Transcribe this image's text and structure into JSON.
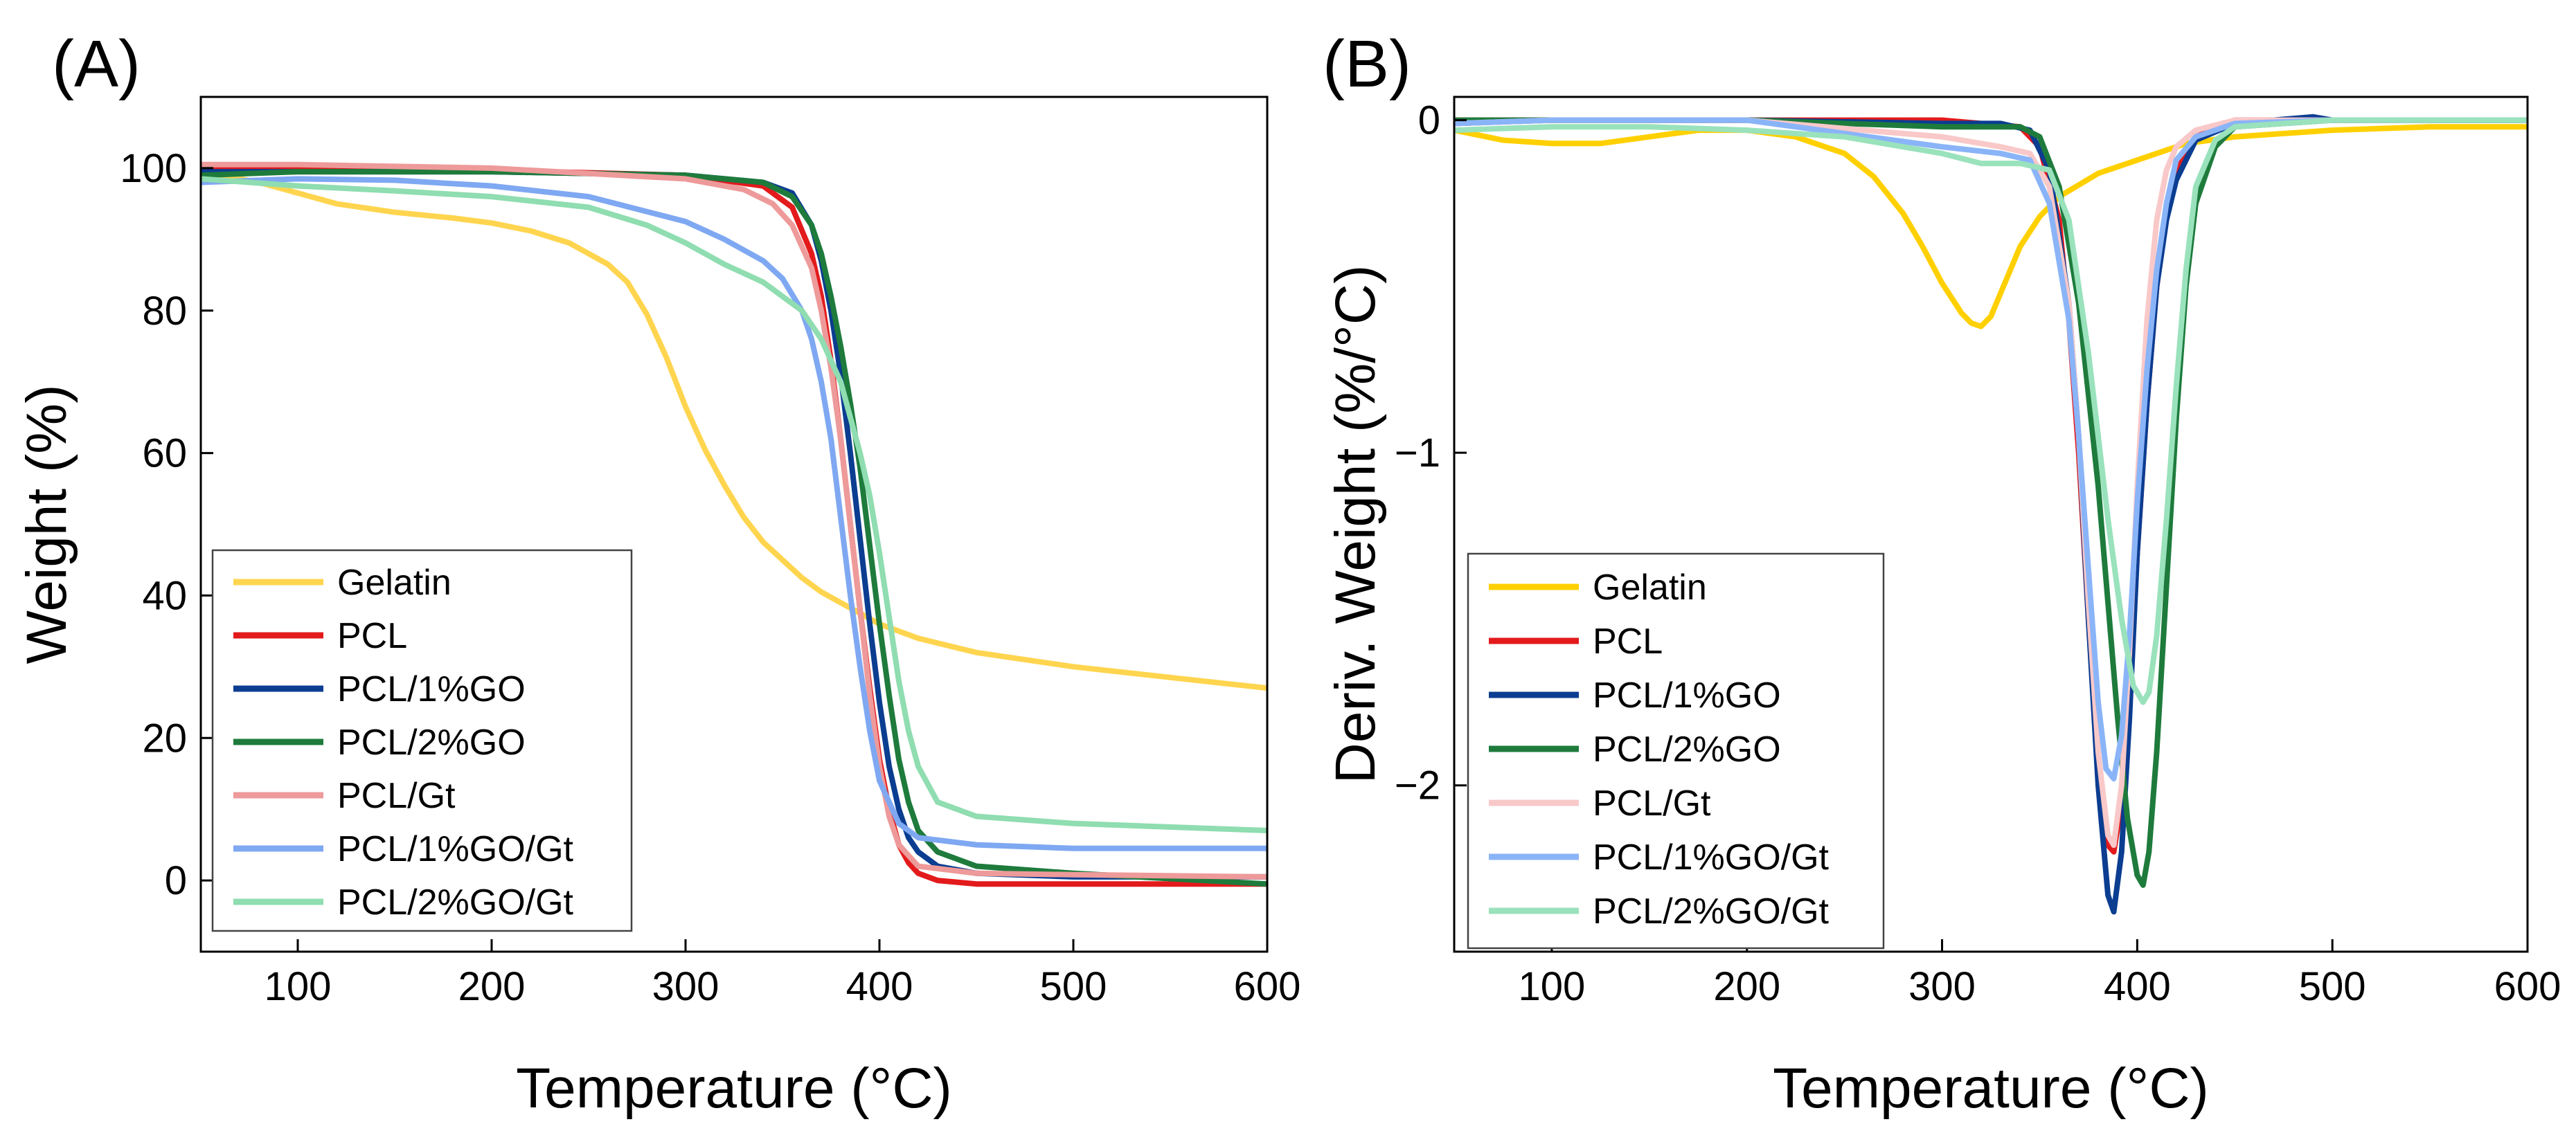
{
  "chart_data": [
    {
      "type": "line",
      "panel_label": "(A)",
      "title": "",
      "xlabel": "Temperature (°C)",
      "ylabel": "Weight (%)",
      "xlim": [
        50,
        600
      ],
      "ylim": [
        -10,
        110
      ],
      "xticks": [
        100,
        200,
        300,
        400,
        500,
        600
      ],
      "yticks": [
        0,
        20,
        40,
        60,
        80,
        100
      ],
      "grid": false,
      "legend_position": "bottom-left",
      "series": [
        {
          "name": "Gelatin",
          "color": "#FFD54F",
          "x": [
            50,
            60,
            80,
            100,
            120,
            150,
            180,
            200,
            220,
            240,
            260,
            270,
            280,
            290,
            300,
            310,
            320,
            330,
            340,
            350,
            360,
            370,
            380,
            390,
            400,
            420,
            450,
            500,
            550,
            600
          ],
          "y": [
            100,
            99,
            98,
            96.5,
            95,
            93.8,
            93,
            92.3,
            91.2,
            89.5,
            86.5,
            84,
            79.5,
            73.5,
            66.5,
            60.5,
            55.5,
            51,
            47.5,
            45,
            42.5,
            40.5,
            39,
            37.5,
            36,
            34,
            32,
            30,
            28.5,
            27
          ]
        },
        {
          "name": "PCL",
          "color": "#E31A1C",
          "x": [
            50,
            100,
            200,
            300,
            340,
            355,
            365,
            370,
            375,
            380,
            385,
            390,
            395,
            400,
            405,
            410,
            415,
            420,
            430,
            450,
            500,
            600
          ],
          "y": [
            100,
            100,
            99.7,
            99,
            97.5,
            94.5,
            88,
            82,
            73,
            62,
            50,
            38,
            27,
            17,
            10,
            5,
            2.5,
            1,
            0,
            -0.5,
            -0.5,
            -0.5
          ]
        },
        {
          "name": "PCL/1%GO",
          "color": "#0B3D91",
          "x": [
            50,
            100,
            200,
            300,
            340,
            355,
            365,
            370,
            375,
            380,
            385,
            390,
            395,
            400,
            405,
            410,
            415,
            420,
            430,
            450,
            500,
            600
          ],
          "y": [
            99.5,
            99.5,
            99.5,
            99,
            98,
            96.5,
            92,
            87,
            80,
            71,
            60,
            48,
            36,
            25,
            16,
            10,
            6,
            4,
            2,
            1,
            0.5,
            0.5
          ]
        },
        {
          "name": "PCL/2%GO",
          "color": "#1E7B3C",
          "x": [
            50,
            100,
            200,
            300,
            340,
            355,
            365,
            370,
            375,
            380,
            385,
            390,
            395,
            400,
            405,
            410,
            415,
            420,
            430,
            450,
            500,
            600
          ],
          "y": [
            99,
            99.5,
            99.5,
            99,
            98,
            96,
            92,
            88,
            82,
            75,
            67,
            58,
            47,
            36,
            26,
            17,
            11,
            7,
            4,
            2,
            1,
            -0.5
          ]
        },
        {
          "name": "PCL/Gt",
          "color": "#EE9A9A",
          "x": [
            50,
            100,
            200,
            300,
            330,
            345,
            355,
            365,
            370,
            375,
            380,
            385,
            390,
            395,
            400,
            405,
            410,
            420,
            450,
            500,
            600
          ],
          "y": [
            100.5,
            100.5,
            100,
            98.5,
            97,
            95,
            92,
            86,
            80,
            72,
            62,
            50,
            38,
            26,
            16,
            9,
            5,
            2,
            1,
            0.8,
            0.5
          ]
        },
        {
          "name": "PCL/1%GO/Gt",
          "color": "#7FA8F2",
          "x": [
            50,
            100,
            150,
            200,
            250,
            300,
            320,
            340,
            350,
            360,
            365,
            370,
            375,
            380,
            385,
            390,
            395,
            400,
            410,
            420,
            450,
            500,
            600
          ],
          "y": [
            98,
            98.5,
            98.3,
            97.5,
            96,
            92.5,
            90,
            87,
            84.5,
            80,
            76,
            70,
            62,
            51,
            40,
            30,
            21,
            14,
            8,
            6,
            5,
            4.5,
            4.5
          ]
        },
        {
          "name": "PCL/2%GO/Gt",
          "color": "#8FDDB0",
          "x": [
            50,
            100,
            150,
            200,
            250,
            280,
            300,
            320,
            340,
            360,
            370,
            380,
            390,
            395,
            400,
            405,
            410,
            415,
            420,
            430,
            450,
            500,
            600
          ],
          "y": [
            98.5,
            97.5,
            96.8,
            96,
            94.5,
            92,
            89.5,
            86.5,
            84,
            80,
            76,
            70,
            60,
            54,
            46,
            37,
            28,
            21,
            16,
            11,
            9,
            8,
            7
          ]
        }
      ],
      "legend": [
        "Gelatin",
        "PCL",
        "PCL/1%GO",
        "PCL/2%GO",
        "PCL/Gt",
        "PCL/1%GO/Gt",
        "PCL/2%GO/Gt"
      ]
    },
    {
      "type": "line",
      "panel_label": "(B)",
      "title": "",
      "xlabel": "Temperature (°C)",
      "ylabel": "Deriv. Weight (%/°C)",
      "xlim": [
        50,
        600
      ],
      "ylim": [
        -2.5,
        0.07
      ],
      "xticks": [
        100,
        200,
        300,
        400,
        500,
        600
      ],
      "yticks": [
        0,
        -1,
        -2
      ],
      "grid": false,
      "legend_position": "bottom-left",
      "series": [
        {
          "name": "Gelatin",
          "color": "#FFD000",
          "x": [
            50,
            75,
            100,
            125,
            150,
            175,
            200,
            225,
            250,
            265,
            280,
            290,
            300,
            310,
            315,
            320,
            325,
            330,
            340,
            350,
            360,
            380,
            400,
            425,
            450,
            500,
            550,
            600
          ],
          "y": [
            -0.03,
            -0.06,
            -0.07,
            -0.07,
            -0.05,
            -0.03,
            -0.03,
            -0.05,
            -0.1,
            -0.17,
            -0.28,
            -0.38,
            -0.49,
            -0.58,
            -0.61,
            -0.62,
            -0.59,
            -0.52,
            -0.38,
            -0.29,
            -0.23,
            -0.16,
            -0.12,
            -0.07,
            -0.05,
            -0.03,
            -0.02,
            -0.02
          ]
        },
        {
          "name": "PCL",
          "color": "#E31A1C",
          "x": [
            50,
            100,
            200,
            300,
            340,
            350,
            360,
            365,
            370,
            375,
            380,
            385,
            388,
            392,
            396,
            400,
            405,
            410,
            415,
            420,
            430,
            450,
            500,
            600
          ],
          "y": [
            0,
            0,
            0,
            0,
            -0.02,
            -0.08,
            -0.3,
            -0.6,
            -1.0,
            -1.5,
            -1.95,
            -2.18,
            -2.2,
            -2.05,
            -1.7,
            -1.3,
            -0.85,
            -0.5,
            -0.28,
            -0.15,
            -0.05,
            0,
            0,
            0
          ]
        },
        {
          "name": "PCL/1%GO",
          "color": "#0B3D91",
          "x": [
            50,
            100,
            200,
            300,
            330,
            345,
            355,
            365,
            370,
            375,
            380,
            385,
            388,
            392,
            396,
            400,
            405,
            410,
            415,
            420,
            430,
            450,
            490,
            500,
            600
          ],
          "y": [
            -0.01,
            0,
            0,
            -0.01,
            -0.01,
            -0.03,
            -0.15,
            -0.55,
            -0.95,
            -1.5,
            -2.0,
            -2.33,
            -2.38,
            -2.2,
            -1.8,
            -1.3,
            -0.85,
            -0.5,
            -0.3,
            -0.18,
            -0.06,
            -0.01,
            0.01,
            0,
            0
          ]
        },
        {
          "name": "PCL/2%GO",
          "color": "#1E7B3C",
          "x": [
            50,
            100,
            200,
            300,
            340,
            350,
            360,
            370,
            380,
            385,
            390,
            395,
            400,
            403,
            406,
            410,
            415,
            420,
            425,
            430,
            440,
            450,
            500,
            600
          ],
          "y": [
            0,
            0,
            0,
            -0.02,
            -0.02,
            -0.05,
            -0.2,
            -0.55,
            -1.1,
            -1.45,
            -1.8,
            -2.1,
            -2.27,
            -2.3,
            -2.2,
            -1.9,
            -1.4,
            -0.9,
            -0.5,
            -0.25,
            -0.08,
            -0.02,
            0,
            0
          ]
        },
        {
          "name": "PCL/Gt",
          "color": "#F9C8C8",
          "x": [
            50,
            100,
            200,
            300,
            330,
            345,
            355,
            365,
            370,
            375,
            380,
            385,
            388,
            392,
            396,
            400,
            405,
            410,
            415,
            420,
            430,
            450,
            500,
            600
          ],
          "y": [
            -0.01,
            0,
            0,
            -0.05,
            -0.08,
            -0.1,
            -0.2,
            -0.55,
            -0.95,
            -1.45,
            -1.9,
            -2.15,
            -2.18,
            -2.0,
            -1.6,
            -1.1,
            -0.6,
            -0.3,
            -0.15,
            -0.08,
            -0.03,
            0,
            0,
            0
          ]
        },
        {
          "name": "PCL/1%GO/Gt",
          "color": "#8AB4F8",
          "x": [
            50,
            100,
            200,
            300,
            330,
            345,
            355,
            365,
            370,
            375,
            380,
            384,
            388,
            392,
            396,
            400,
            405,
            410,
            415,
            420,
            430,
            450,
            500,
            600
          ],
          "y": [
            -0.01,
            0,
            0,
            -0.08,
            -0.1,
            -0.12,
            -0.25,
            -0.6,
            -0.95,
            -1.35,
            -1.75,
            -1.95,
            -1.98,
            -1.85,
            -1.55,
            -1.15,
            -0.75,
            -0.45,
            -0.25,
            -0.12,
            -0.05,
            -0.01,
            0,
            0
          ]
        },
        {
          "name": "PCL/2%GO/Gt",
          "color": "#99E2BC",
          "x": [
            50,
            100,
            150,
            200,
            250,
            300,
            320,
            340,
            355,
            365,
            375,
            385,
            392,
            398,
            403,
            406,
            410,
            415,
            420,
            425,
            430,
            440,
            450,
            500,
            600
          ],
          "y": [
            -0.03,
            -0.02,
            -0.02,
            -0.03,
            -0.05,
            -0.1,
            -0.13,
            -0.13,
            -0.15,
            -0.3,
            -0.7,
            -1.2,
            -1.5,
            -1.7,
            -1.75,
            -1.72,
            -1.55,
            -1.2,
            -0.8,
            -0.45,
            -0.2,
            -0.06,
            -0.02,
            0,
            0
          ]
        }
      ],
      "legend": [
        "Gelatin",
        "PCL",
        "PCL/1%GO",
        "PCL/2%GO",
        "PCL/Gt",
        "PCL/1%GO/Gt",
        "PCL/2%GO/Gt"
      ]
    }
  ]
}
